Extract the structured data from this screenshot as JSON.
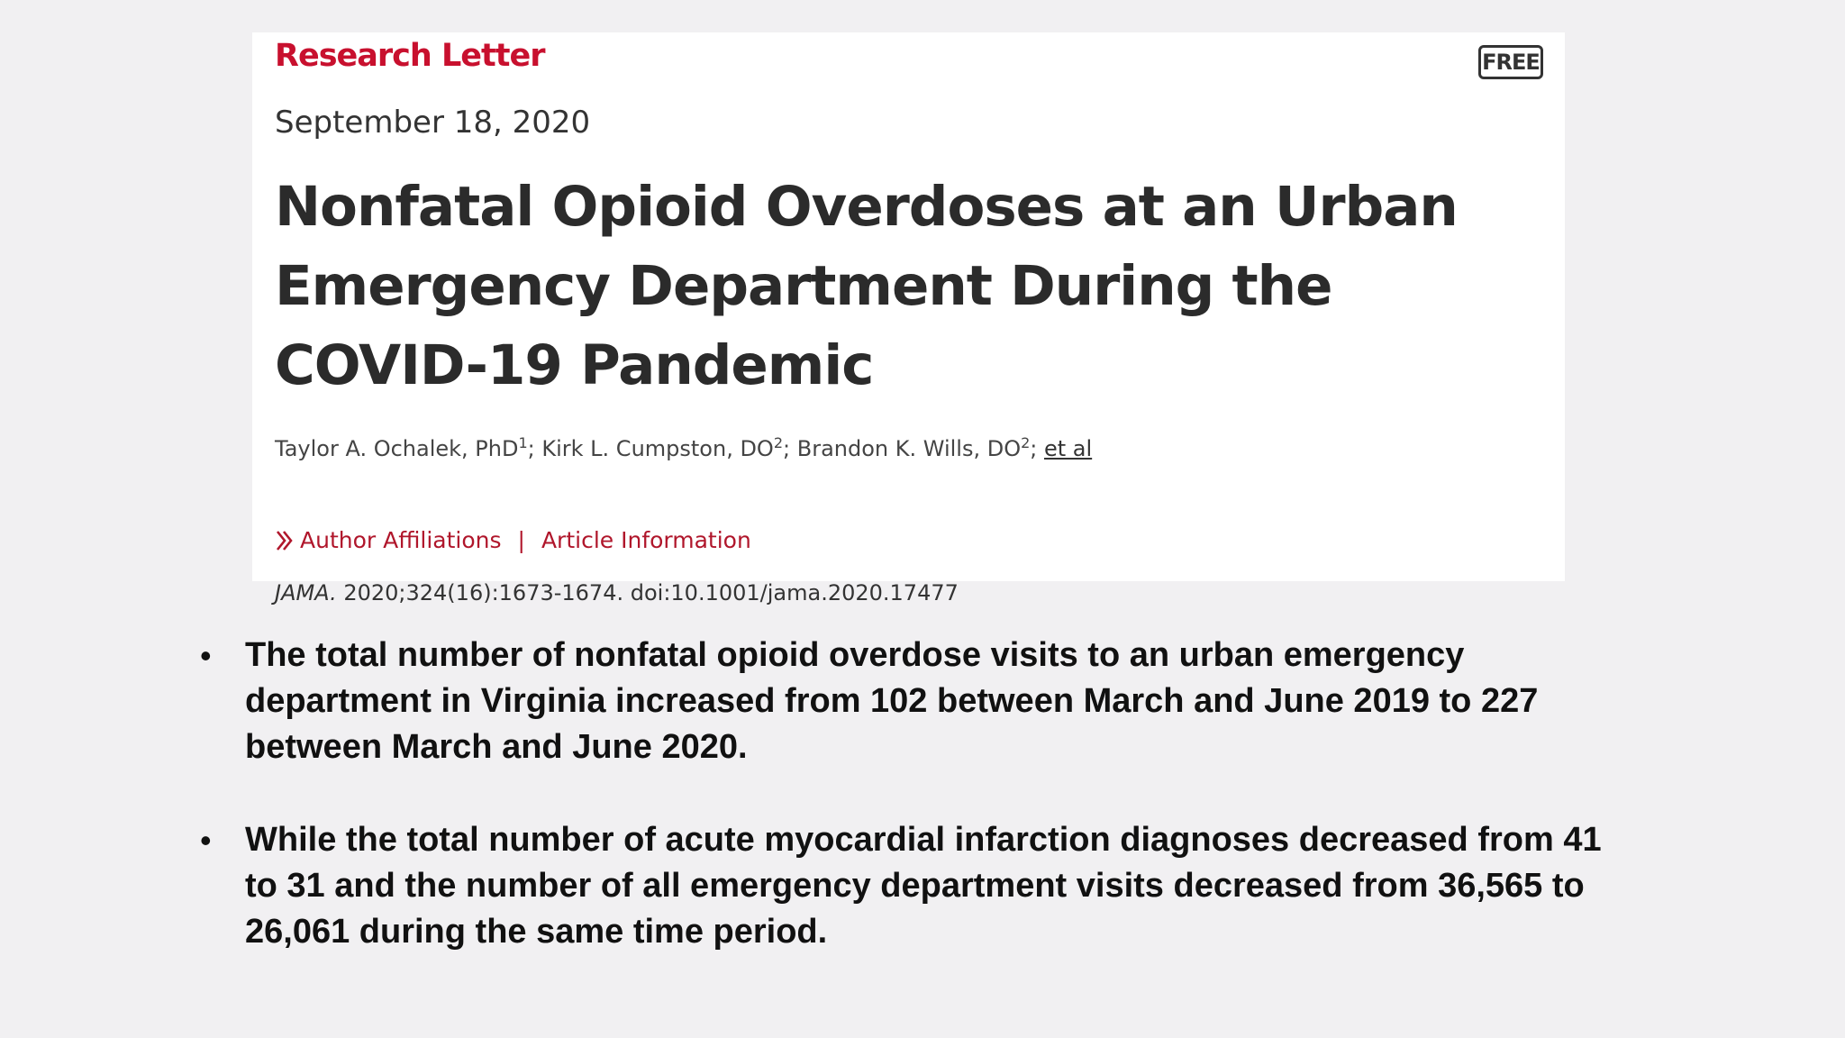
{
  "article": {
    "type_label": "Research Letter",
    "free_badge": "FREE",
    "date": "September 18, 2020",
    "title": "Nonfatal Opioid Overdoses at an Urban Emergency Department During the COVID-19 Pandemic",
    "authors": [
      {
        "name": "Taylor A. Ochalek, PhD",
        "sup": "1",
        "sep": "; "
      },
      {
        "name": "Kirk L. Cumpston, DO",
        "sup": "2",
        "sep": "; "
      },
      {
        "name": "Brandon K. Wills, DO",
        "sup": "2",
        "sep": "; "
      }
    ],
    "et_al": "et al",
    "author_affiliations_link": "Author Affiliations",
    "link_separator": "|",
    "article_information_link": "Article Information",
    "citation_journal": "JAMA.",
    "citation_rest": " 2020;324(16):1673-1674. doi:10.1001/jama.2020.17477"
  },
  "bullets": {
    "marker": "•",
    "items": [
      "The total number of nonfatal opioid overdose visits to an urban emergency department in Virginia increased from 102 between March and June 2019 to 227 between March and June 2020.",
      "While the total number of acute myocardial infarction diagnoses decreased from 41 to 31 and the number of all emergency department visits decreased from 36,565 to 26,061 during the same time period."
    ]
  },
  "colors": {
    "background": "#f1f0f2",
    "card": "#ffffff",
    "accent_red": "#c8102e",
    "text_dark": "#2b2b2b"
  }
}
